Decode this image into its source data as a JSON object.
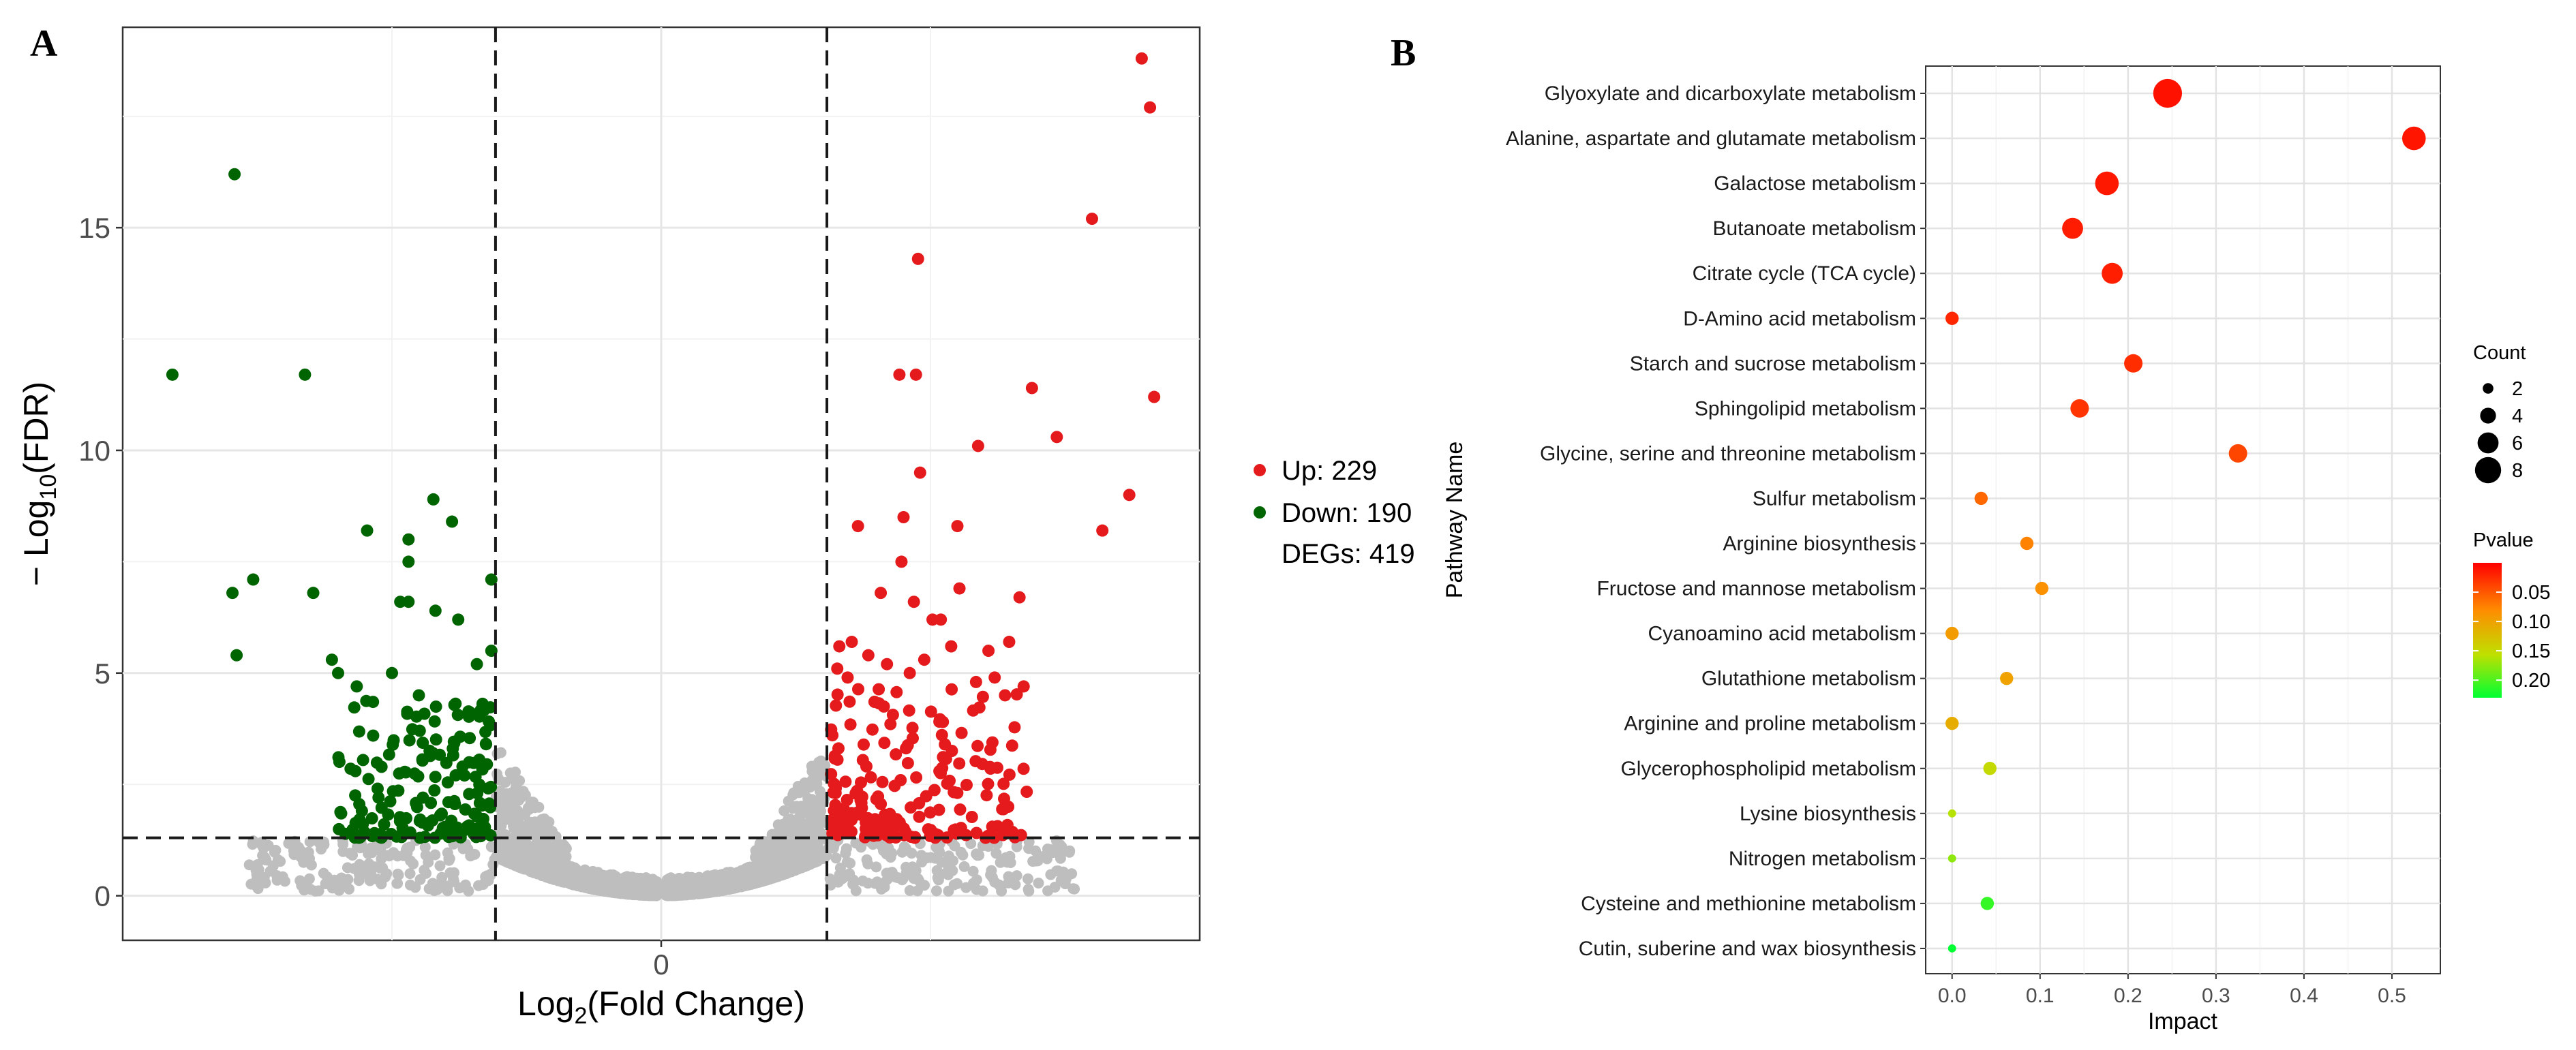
{
  "panel_a": {
    "label": "A",
    "chart_data": {
      "type": "scatter",
      "title": "",
      "xlabel_prefix": "Log",
      "xlabel_sub": "2",
      "xlabel_suffix": "(Fold Change)",
      "ylabel_prefix": "− Log",
      "ylabel_sub": "10",
      "ylabel_suffix": "(FDR)",
      "xlim": [
        -2.6,
        2.6
      ],
      "ylim": [
        -1.0,
        19.5
      ],
      "x_ticks": [
        0
      ],
      "x_tick_labels": [
        "0"
      ],
      "y_ticks": [
        0,
        5,
        10,
        15
      ],
      "y_tick_labels": [
        "0",
        "5",
        "10",
        "15"
      ],
      "fc_threshold": 0.8,
      "fdr_threshold": 1.3,
      "colors": {
        "up": "#e41a1c",
        "down": "#006400",
        "ns": "#bebebe"
      },
      "legend": {
        "up": "Up: 229",
        "down": "Down: 190",
        "degs": "DEGs: 419"
      },
      "up_points": [
        [
          2.32,
          18.8
        ],
        [
          2.36,
          17.7
        ],
        [
          2.08,
          15.2
        ],
        [
          1.24,
          14.3
        ],
        [
          2.38,
          11.2
        ],
        [
          1.15,
          11.7
        ],
        [
          1.23,
          11.7
        ],
        [
          1.79,
          11.4
        ],
        [
          1.91,
          10.3
        ],
        [
          1.53,
          10.1
        ],
        [
          2.26,
          9.0
        ],
        [
          1.25,
          9.5
        ],
        [
          2.13,
          8.2
        ],
        [
          1.17,
          8.5
        ],
        [
          0.95,
          8.3
        ],
        [
          1.43,
          8.3
        ],
        [
          1.16,
          7.5
        ],
        [
          1.73,
          6.7
        ],
        [
          1.22,
          6.6
        ],
        [
          1.44,
          6.9
        ],
        [
          1.06,
          6.8
        ],
        [
          1.68,
          5.7
        ],
        [
          1.31,
          6.2
        ],
        [
          1.35,
          6.2
        ],
        [
          1.58,
          5.5
        ],
        [
          1.4,
          5.6
        ],
        [
          1.61,
          4.9
        ],
        [
          1.52,
          4.8
        ],
        [
          1.0,
          5.4
        ],
        [
          1.2,
          5.0
        ],
        [
          0.86,
          5.6
        ],
        [
          0.92,
          5.7
        ],
        [
          1.09,
          5.2
        ],
        [
          1.27,
          5.3
        ],
        [
          1.66,
          4.5
        ],
        [
          1.75,
          4.7
        ],
        [
          0.9,
          4.9
        ],
        [
          0.85,
          5.1
        ]
      ],
      "down_points": [
        [
          -2.06,
          16.2
        ],
        [
          -2.36,
          11.7
        ],
        [
          -1.72,
          11.7
        ],
        [
          -1.1,
          8.9
        ],
        [
          -1.01,
          8.4
        ],
        [
          -1.42,
          8.2
        ],
        [
          -1.22,
          8.0
        ],
        [
          -1.22,
          7.5
        ],
        [
          -0.82,
          7.1
        ],
        [
          -1.97,
          7.1
        ],
        [
          -2.07,
          6.8
        ],
        [
          -1.68,
          6.8
        ],
        [
          -1.26,
          6.6
        ],
        [
          -1.22,
          6.6
        ],
        [
          -1.09,
          6.4
        ],
        [
          -0.98,
          6.2
        ],
        [
          -2.05,
          5.4
        ],
        [
          -1.59,
          5.3
        ],
        [
          -0.82,
          5.5
        ],
        [
          -1.56,
          5.0
        ],
        [
          -1.3,
          5.0
        ],
        [
          -0.89,
          5.2
        ],
        [
          -1.47,
          4.7
        ],
        [
          -1.17,
          4.5
        ]
      ]
    }
  },
  "panel_b": {
    "label": "B",
    "chart_data": {
      "type": "scatter",
      "xlabel": "Impact",
      "ylabel": "Pathway Name",
      "xlim": [
        -0.03,
        0.555
      ],
      "x_ticks": [
        0.0,
        0.1,
        0.2,
        0.3,
        0.4,
        0.5
      ],
      "x_tick_labels": [
        "0.0",
        "0.1",
        "0.2",
        "0.3",
        "0.4",
        "0.5"
      ],
      "pathways": [
        {
          "name": "Glyoxylate and dicarboxylate metabolism",
          "impact": 0.245,
          "count": 9,
          "pvalue": 0.01
        },
        {
          "name": "Alanine, aspartate and glutamate metabolism",
          "impact": 0.525,
          "count": 7,
          "pvalue": 0.012
        },
        {
          "name": "Galactose metabolism",
          "impact": 0.176,
          "count": 7,
          "pvalue": 0.014
        },
        {
          "name": "Butanoate metabolism",
          "impact": 0.137,
          "count": 6,
          "pvalue": 0.016
        },
        {
          "name": "Citrate cycle (TCA cycle)",
          "impact": 0.182,
          "count": 6,
          "pvalue": 0.018
        },
        {
          "name": "D-Amino acid metabolism",
          "impact": 0.0,
          "count": 3,
          "pvalue": 0.022
        },
        {
          "name": "Starch and sucrose metabolism",
          "impact": 0.206,
          "count": 5,
          "pvalue": 0.026
        },
        {
          "name": "Sphingolipid metabolism",
          "impact": 0.145,
          "count": 5,
          "pvalue": 0.03
        },
        {
          "name": "Glycine, serine and threonine metabolism",
          "impact": 0.325,
          "count": 5,
          "pvalue": 0.04
        },
        {
          "name": "Sulfur metabolism",
          "impact": 0.033,
          "count": 3,
          "pvalue": 0.06
        },
        {
          "name": "Arginine biosynthesis",
          "impact": 0.085,
          "count": 3,
          "pvalue": 0.075
        },
        {
          "name": "Fructose and mannose metabolism",
          "impact": 0.102,
          "count": 3,
          "pvalue": 0.085
        },
        {
          "name": "Cyanoamino acid metabolism",
          "impact": 0.0,
          "count": 3,
          "pvalue": 0.095
        },
        {
          "name": "Glutathione metabolism",
          "impact": 0.062,
          "count": 3,
          "pvalue": 0.1
        },
        {
          "name": "Arginine and proline metabolism",
          "impact": 0.0,
          "count": 3,
          "pvalue": 0.11
        },
        {
          "name": "Glycerophospholipid metabolism",
          "impact": 0.043,
          "count": 3,
          "pvalue": 0.15
        },
        {
          "name": "Lysine biosynthesis",
          "impact": 0.0,
          "count": 1,
          "pvalue": 0.16
        },
        {
          "name": "Nitrogen metabolism",
          "impact": 0.0,
          "count": 1,
          "pvalue": 0.175
        },
        {
          "name": "Cysteine and methionine metabolism",
          "impact": 0.04,
          "count": 3,
          "pvalue": 0.21
        },
        {
          "name": "Cutin, suberine and wax biosynthesis",
          "impact": 0.0,
          "count": 1,
          "pvalue": 0.23
        }
      ],
      "count_legend": {
        "title": "Count",
        "values": [
          2,
          4,
          6,
          8
        ],
        "labels": [
          "2",
          "4",
          "6",
          "8"
        ]
      },
      "pvalue_legend": {
        "title": "Pvalue",
        "range": [
          0.0,
          0.23
        ],
        "ticks": [
          0.05,
          0.1,
          0.15,
          0.2
        ],
        "labels": [
          "0.05",
          "0.10",
          "0.15",
          "0.20"
        ],
        "colors": [
          "#ff0000",
          "#ff8c00",
          "#bfe000",
          "#00ff33"
        ]
      }
    }
  }
}
